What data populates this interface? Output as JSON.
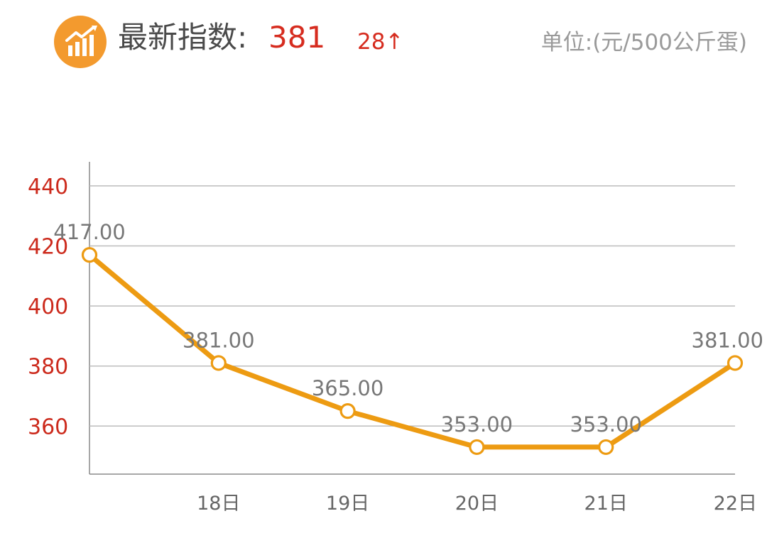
{
  "header": {
    "index_label": "最新指数:",
    "index_value": "381",
    "change": "28↑",
    "unit": "单位:(元/500公斤蛋)"
  },
  "colors": {
    "logo": "#f39a2e",
    "line": "#ed9b12",
    "grid": "#bcbcbc",
    "y_ticks": "#cc2a1c",
    "value_red": "#d62c1f"
  },
  "icons": {
    "logo": "bar-chart-trend-icon"
  },
  "chart_data": {
    "type": "line",
    "categories": [
      "",
      "18日",
      "19日",
      "20日",
      "21日",
      "22日"
    ],
    "values": [
      417,
      381,
      365,
      353,
      353,
      381
    ],
    "data_labels": [
      "417.00",
      "381.00",
      "365.00",
      "353.00",
      "353.00",
      "381.00"
    ],
    "y_ticks": [
      360,
      380,
      400,
      420,
      440
    ],
    "ylim": [
      344,
      448
    ],
    "grid": true
  }
}
